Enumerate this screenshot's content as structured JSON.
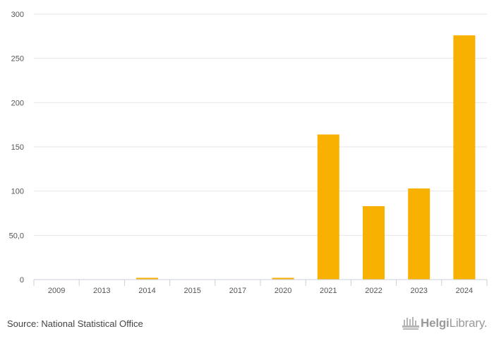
{
  "chart_data": {
    "type": "bar",
    "categories": [
      "2009",
      "2013",
      "2014",
      "2015",
      "2017",
      "2020",
      "2021",
      "2022",
      "2023",
      "2024"
    ],
    "values": [
      0,
      0,
      2,
      0,
      0,
      2,
      164,
      83,
      103,
      276
    ],
    "ylim": [
      0,
      300
    ],
    "yticks": [
      0,
      50,
      100,
      150,
      200,
      250,
      300
    ],
    "ytick_labels": [
      "0",
      "50,0",
      "100",
      "150",
      "200",
      "250",
      "300"
    ],
    "grid": true,
    "bar_color": "#f8b100"
  },
  "footer": {
    "source": "Source: National Statistical Office",
    "brand_bold": "Helgi",
    "brand_light": "Library."
  },
  "icons": {
    "brand_logo": "helgi-library-logo-icon"
  }
}
